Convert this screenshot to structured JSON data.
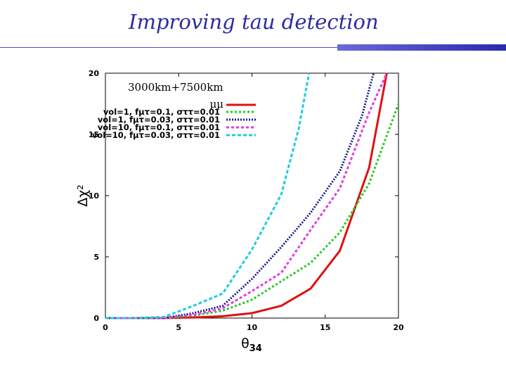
{
  "slide": {
    "title": "Improving tau detection"
  },
  "colors": {
    "title": "#2c2ca0",
    "accent_bar": "#3b3bbf"
  },
  "chart_data": {
    "type": "line",
    "title": "3000km+7500km",
    "xlabel": "θ34",
    "ylabel": "Δχ²",
    "xlim": [
      0,
      20
    ],
    "ylim": [
      0,
      20
    ],
    "xticks": [
      "0",
      "5",
      "10",
      "15",
      "20"
    ],
    "yticks": [
      "0",
      "5",
      "10",
      "15",
      "20"
    ],
    "grid": false,
    "legend_position": "top-left",
    "series": [
      {
        "name": "μμ",
        "color": "#e01010",
        "dash": "none",
        "x": [
          0,
          2,
          4,
          6,
          8,
          10,
          12,
          14,
          16,
          18,
          19.2
        ],
        "y": [
          0,
          0,
          0,
          0.05,
          0.15,
          0.4,
          1.0,
          2.4,
          5.5,
          12.3,
          20
        ]
      },
      {
        "name": "vol=1, fμτ=0.1, σττ=0.01",
        "color": "#22cc22",
        "dash": "3,3",
        "x": [
          0,
          2,
          4,
          6,
          8,
          10,
          12,
          14,
          16,
          18,
          20
        ],
        "y": [
          0,
          0,
          0,
          0.2,
          0.6,
          1.5,
          3.0,
          4.5,
          7.0,
          11.0,
          17.5
        ]
      },
      {
        "name": "vol=1, fμτ=0.03, σττ=0.01",
        "color": "#1a1a8c",
        "dash": "2,2",
        "x": [
          0,
          2,
          4,
          6,
          8,
          10,
          12,
          14,
          16,
          17.5,
          18.3
        ],
        "y": [
          0,
          0,
          0,
          0.4,
          1.0,
          3.2,
          5.8,
          8.6,
          12.0,
          16.5,
          20
        ]
      },
      {
        "name": "vol=10, fμτ=0.1, σττ=0.01",
        "color": "#e040e0",
        "dash": "4,3",
        "x": [
          0,
          2,
          4,
          6,
          8,
          10,
          12,
          14,
          16,
          18,
          19.2
        ],
        "y": [
          0,
          0,
          0,
          0.25,
          0.8,
          2.2,
          3.7,
          7.2,
          10.6,
          16.8,
          20
        ]
      },
      {
        "name": "vol=10, fμτ=0.03, σττ=0.01",
        "color": "#22ccdd",
        "dash": "5,3",
        "x": [
          0,
          2,
          4,
          6,
          8,
          10,
          12,
          13.2,
          13.9
        ],
        "y": [
          0,
          0,
          0.1,
          1.0,
          2.0,
          5.6,
          10.1,
          15.5,
          20
        ]
      }
    ]
  }
}
